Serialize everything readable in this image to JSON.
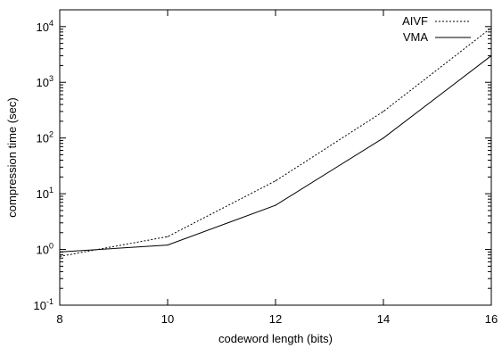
{
  "chart_data": {
    "type": "line",
    "title": "",
    "xlabel": "codeword length (bits)",
    "ylabel": "compression time (sec)",
    "xlim": [
      8,
      16
    ],
    "ylim": [
      0.1,
      20000
    ],
    "yscale": "log",
    "grid": false,
    "legend_position": "top-right",
    "x_ticks": [
      8,
      10,
      12,
      14,
      16
    ],
    "y_ticks": [
      {
        "value": 0.1,
        "base": "10",
        "exp": "-1"
      },
      {
        "value": 1,
        "base": "10",
        "exp": "0"
      },
      {
        "value": 10,
        "base": "10",
        "exp": "1"
      },
      {
        "value": 100,
        "base": "10",
        "exp": "2"
      },
      {
        "value": 1000,
        "base": "10",
        "exp": "3"
      },
      {
        "value": 10000,
        "base": "10",
        "exp": "4"
      }
    ],
    "series": [
      {
        "name": "AIVF",
        "style": "dotted",
        "x": [
          8,
          10,
          12,
          14,
          16
        ],
        "values": [
          0.75,
          1.7,
          17,
          300,
          9500
        ]
      },
      {
        "name": "VMA",
        "style": "solid",
        "x": [
          8,
          10,
          12,
          14,
          16
        ],
        "values": [
          0.9,
          1.2,
          6.2,
          100,
          3000
        ]
      }
    ]
  }
}
